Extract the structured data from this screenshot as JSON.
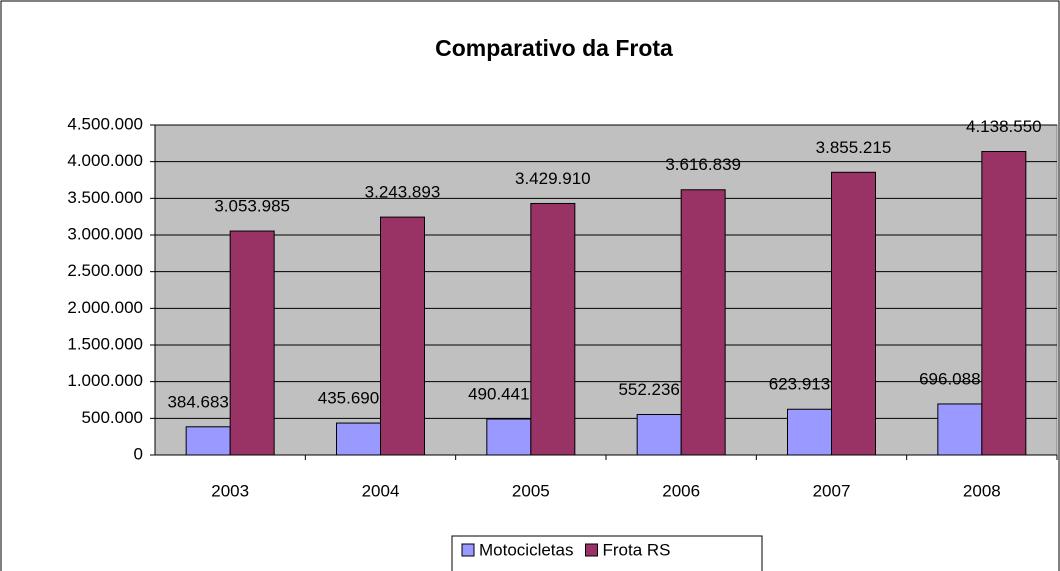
{
  "chart_data": {
    "type": "bar",
    "title": "Comparativo da Frota",
    "categories": [
      "2003",
      "2004",
      "2005",
      "2006",
      "2007",
      "2008"
    ],
    "series": [
      {
        "name": "Motocicletas",
        "color": "#9999ff",
        "values": [
          384683,
          435690,
          490441,
          552236,
          623913,
          696088
        ],
        "value_labels": [
          "384.683",
          "435.690",
          "490.441",
          "552.236",
          "623.913",
          "696.088"
        ]
      },
      {
        "name": "Frota RS",
        "color": "#993366",
        "values": [
          3053985,
          3243893,
          3429910,
          3616839,
          3855215,
          4138550
        ],
        "value_labels": [
          "3.053.985",
          "3.243.893",
          "3.429.910",
          "3.616.839",
          "3.855.215",
          "4.138.550"
        ]
      }
    ],
    "ylim": [
      0,
      4500000
    ],
    "yticks": [
      0,
      {
        "value": 500000,
        "label": "500.000"
      },
      {
        "value": 1000000,
        "label": "1.000.000"
      },
      {
        "value": 1500000,
        "label": "1.500.000"
      },
      {
        "value": 2000000,
        "label": "2.000.000"
      },
      {
        "value": 2500000,
        "label": "2.500.000"
      },
      {
        "value": 3000000,
        "label": "3.000.000"
      },
      {
        "value": 3500000,
        "label": "3.500.000"
      },
      {
        "value": 4000000,
        "label": "4.000.000"
      },
      {
        "value": 4500000,
        "label": "4.500.000"
      }
    ],
    "grid": true,
    "legend": "bottom",
    "plot_background": "#c0c0c0"
  }
}
